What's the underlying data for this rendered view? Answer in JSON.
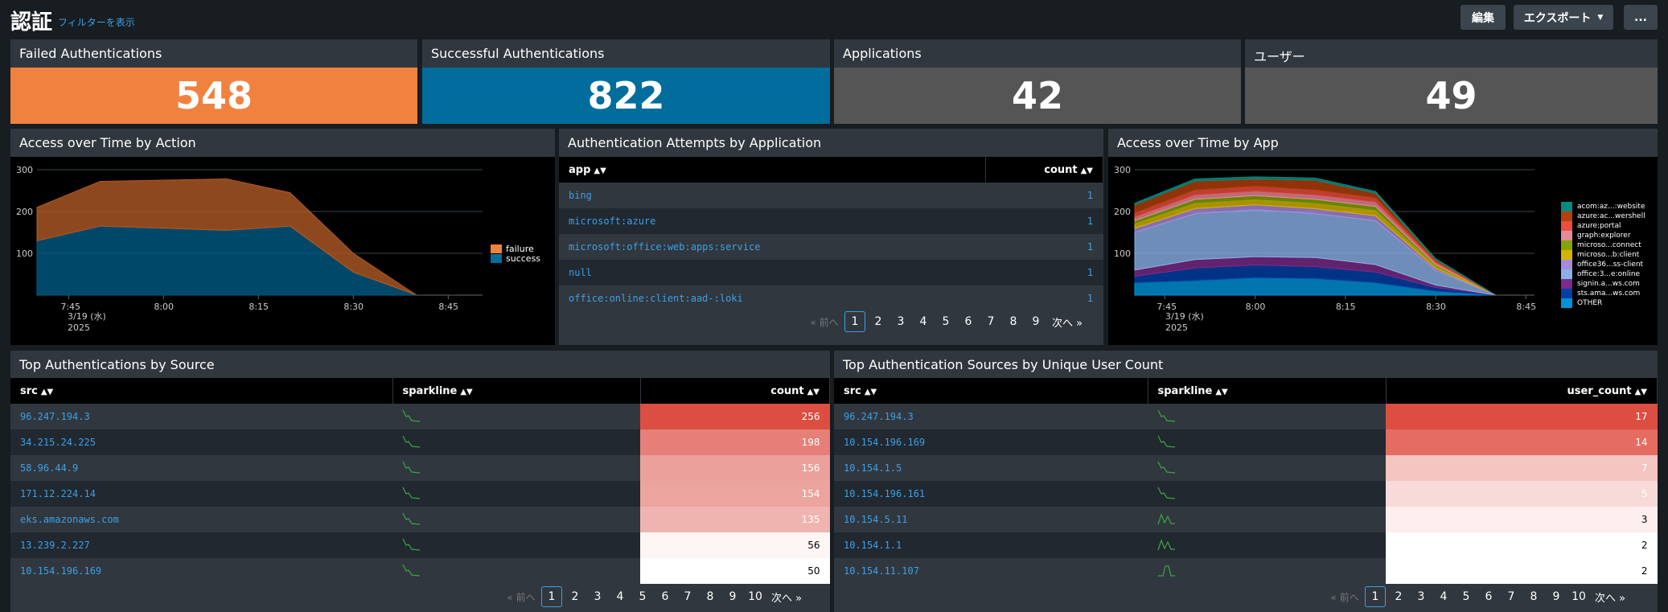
{
  "header": {
    "title": "認証",
    "filter_link": "フィルターを表示",
    "edit_label": "編集",
    "export_label": "エクスポート",
    "more_label": "..."
  },
  "kpis": [
    {
      "title": "Failed Authentications",
      "value": "548",
      "color": "#f1813f"
    },
    {
      "title": "Successful Authentications",
      "value": "822",
      "color": "#006d9c"
    },
    {
      "title": "Applications",
      "value": "42",
      "color": "#555555"
    },
    {
      "title": "ユーザー",
      "value": "49",
      "color": "#555555"
    }
  ],
  "access_by_action": {
    "title": "Access over Time by Action",
    "legend": [
      "failure",
      "success"
    ],
    "colors": {
      "failure": "#b25a25",
      "success": "#005a85"
    },
    "date_label_1": "3/19 (水)",
    "date_label_2": "2025"
  },
  "auth_attempts": {
    "title": "Authentication Attempts by Application",
    "col_app": "app",
    "col_count": "count",
    "rows": [
      {
        "app": "bing",
        "count": "1"
      },
      {
        "app": "microsoft:azure",
        "count": "1"
      },
      {
        "app": "microsoft:office:web:apps:service",
        "count": "1"
      },
      {
        "app": "null",
        "count": "1"
      },
      {
        "app": "office:online:client:aad-:loki",
        "count": "1"
      }
    ],
    "pager": {
      "prev": "« 前へ",
      "pages": [
        "1",
        "2",
        "3",
        "4",
        "5",
        "6",
        "7",
        "8",
        "9"
      ],
      "next": "次へ »"
    }
  },
  "access_by_app": {
    "title": "Access over Time by App",
    "legend": [
      {
        "name": "acom:az...:website",
        "color": "#008c80"
      },
      {
        "name": "azure:ac...wershell",
        "color": "#b5400b"
      },
      {
        "name": "azure:portal",
        "color": "#ec4e41"
      },
      {
        "name": "graph:explorer",
        "color": "#e58a9b"
      },
      {
        "name": "microso...connect",
        "color": "#87a300"
      },
      {
        "name": "microso...b:client",
        "color": "#d6b300"
      },
      {
        "name": "office36...ss-client",
        "color": "#a78ae0"
      },
      {
        "name": "office:3...e:online",
        "color": "#8ab0e6"
      },
      {
        "name": "signin.a...ws.com",
        "color": "#7b2b8a"
      },
      {
        "name": "sts.ama...ws.com",
        "color": "#003ea8"
      },
      {
        "name": "OTHER",
        "color": "#0092d9"
      }
    ],
    "date_label_1": "3/19 (水)",
    "date_label_2": "2025"
  },
  "chart_data": [
    {
      "type": "area",
      "title": "Access over Time by Action",
      "x": [
        "7:40",
        "7:50",
        "8:00",
        "8:10",
        "8:20",
        "8:30",
        "8:40"
      ],
      "x_ticks": [
        "7:45",
        "8:00",
        "8:15",
        "8:30",
        "8:45"
      ],
      "y_ticks": [
        "100",
        "200",
        "300"
      ],
      "ylim": [
        0,
        300
      ],
      "stacked": true,
      "series": [
        {
          "name": "success",
          "values": [
            130,
            165,
            160,
            155,
            165,
            55,
            0
          ]
        },
        {
          "name": "failure",
          "values": [
            80,
            107,
            115,
            123,
            80,
            45,
            0
          ]
        }
      ],
      "legend_position": "right"
    },
    {
      "type": "area",
      "title": "Access over Time by App",
      "x": [
        "7:40",
        "7:50",
        "8:00",
        "8:10",
        "8:20",
        "8:30",
        "8:40"
      ],
      "x_ticks": [
        "7:45",
        "8:00",
        "8:15",
        "8:30",
        "8:45"
      ],
      "y_ticks": [
        "100",
        "200",
        "300"
      ],
      "ylim": [
        0,
        300
      ],
      "stacked": true,
      "series": [
        {
          "name": "OTHER",
          "values": [
            30,
            35,
            42,
            40,
            30,
            10,
            0
          ]
        },
        {
          "name": "sts.ama...ws.com",
          "values": [
            15,
            30,
            30,
            28,
            25,
            8,
            0
          ]
        },
        {
          "name": "signin.a...ws.com",
          "values": [
            15,
            20,
            20,
            22,
            18,
            6,
            0
          ]
        },
        {
          "name": "office:3...e:online",
          "values": [
            90,
            110,
            112,
            105,
            105,
            35,
            0
          ]
        },
        {
          "name": "office36...ss-client",
          "values": [
            10,
            12,
            12,
            12,
            12,
            5,
            0
          ]
        },
        {
          "name": "microso...b:client",
          "values": [
            10,
            12,
            12,
            12,
            12,
            5,
            0
          ]
        },
        {
          "name": "microso...connect",
          "values": [
            8,
            10,
            10,
            10,
            10,
            4,
            0
          ]
        },
        {
          "name": "graph:explorer",
          "values": [
            8,
            10,
            10,
            10,
            10,
            4,
            0
          ]
        },
        {
          "name": "azure:portal",
          "values": [
            10,
            12,
            12,
            12,
            10,
            4,
            0
          ]
        },
        {
          "name": "azure:ac...wershell",
          "values": [
            20,
            22,
            18,
            24,
            12,
            4,
            0
          ]
        },
        {
          "name": "acom:az...:website",
          "values": [
            4,
            5,
            5,
            5,
            4,
            2,
            0
          ]
        }
      ],
      "legend_position": "right"
    }
  ],
  "top_by_source": {
    "title": "Top Authentications by Source",
    "col_src": "src",
    "col_spark": "sparkline",
    "col_count": "count",
    "rows": [
      {
        "src": "96.247.194.3",
        "count": "256",
        "bg": "#dc4e41"
      },
      {
        "src": "34.215.24.225",
        "count": "198",
        "bg": "#e57f77"
      },
      {
        "src": "58.96.44.9",
        "count": "156",
        "bg": "#eba19b"
      },
      {
        "src": "171.12.224.14",
        "count": "154",
        "bg": "#eba49e"
      },
      {
        "src": "eks.amazonaws.com",
        "count": "135",
        "bg": "#efb4af"
      },
      {
        "src": "13.239.2.227",
        "count": "56",
        "bg": "#fdf6f5"
      },
      {
        "src": "10.154.196.169",
        "count": "50",
        "bg": "#ffffff"
      }
    ],
    "pager": {
      "prev": "« 前へ",
      "pages": [
        "1",
        "2",
        "3",
        "4",
        "5",
        "6",
        "7",
        "8",
        "9",
        "10"
      ],
      "next": "次へ »"
    }
  },
  "top_by_unique": {
    "title": "Top Authentication Sources by Unique User Count",
    "col_src": "src",
    "col_spark": "sparkline",
    "col_count": "user_count",
    "rows": [
      {
        "src": "96.247.194.3",
        "count": "17",
        "bg": "#dc4e41"
      },
      {
        "src": "10.154.196.169",
        "count": "14",
        "bg": "#e46c63"
      },
      {
        "src": "10.154.1.5",
        "count": "7",
        "bg": "#f4c5c1"
      },
      {
        "src": "10.154.196.161",
        "count": "5",
        "bg": "#f8dbd8"
      },
      {
        "src": "10.154.5.11",
        "count": "3",
        "bg": "#fcefee"
      },
      {
        "src": "10.154.1.1",
        "count": "2",
        "bg": "#ffffff"
      },
      {
        "src": "10.154.11.107",
        "count": "2",
        "bg": "#ffffff"
      }
    ],
    "pager": {
      "prev": "« 前へ",
      "pages": [
        "1",
        "2",
        "3",
        "4",
        "5",
        "6",
        "7",
        "8",
        "9",
        "10"
      ],
      "next": "次へ »"
    }
  }
}
